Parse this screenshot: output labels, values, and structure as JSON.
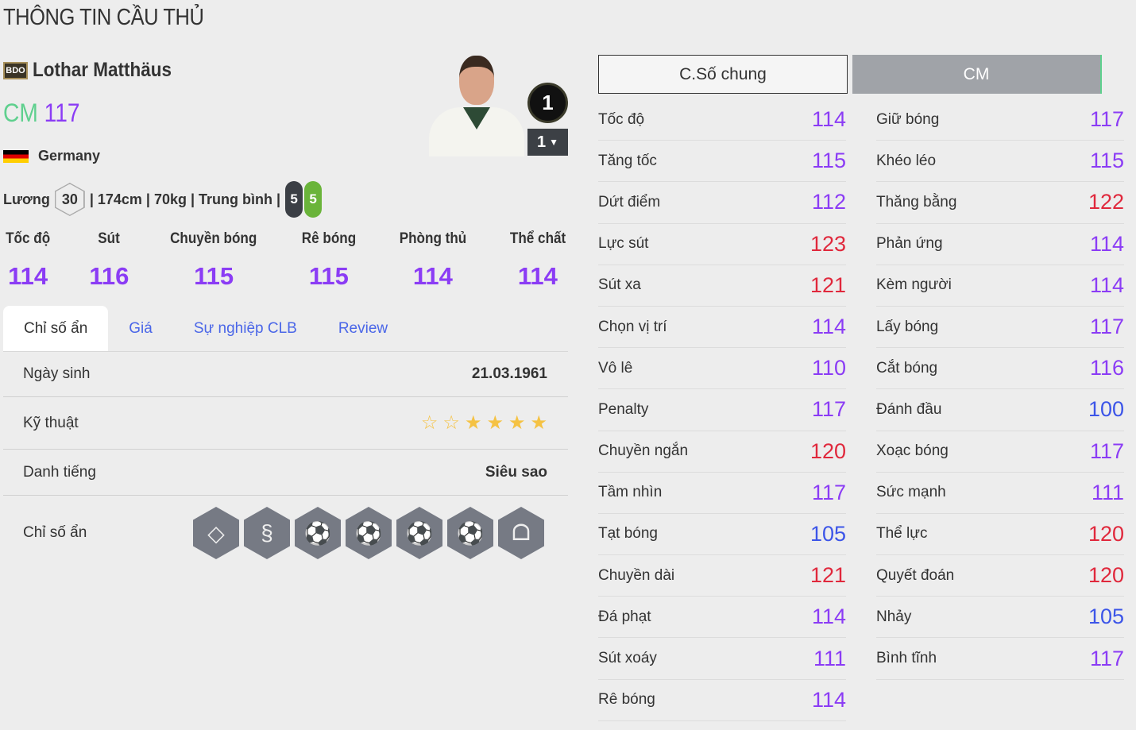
{
  "page_title": "THÔNG TIN CẦU THỦ",
  "player": {
    "season_badge": "BDO",
    "name": "Lothar Matthäus",
    "position": "CM",
    "ovr": "117",
    "nation": "Germany",
    "salary_label": "Lương",
    "salary": "30",
    "body": "| 174cm | 70kg | Trung bình |",
    "foot_left": "5",
    "foot_right": "5",
    "level": "1",
    "level_select": "1"
  },
  "groups": [
    {
      "label": "Tốc độ",
      "value": "114"
    },
    {
      "label": "Sút",
      "value": "116"
    },
    {
      "label": "Chuyền bóng",
      "value": "115"
    },
    {
      "label": "Rê bóng",
      "value": "115"
    },
    {
      "label": "Phòng thủ",
      "value": "114"
    },
    {
      "label": "Thể chất",
      "value": "114"
    }
  ],
  "tabs": [
    "Chỉ số ẩn",
    "Giá",
    "Sự nghiệp CLB",
    "Review"
  ],
  "details": {
    "birth_label": "Ngày sinh",
    "birth": "21.03.1961",
    "skill_label": "Kỹ thuật",
    "skill_stars": 4,
    "skill_max": 6,
    "rep_label": "Danh tiếng",
    "rep": "Siêu sao",
    "hidden_label": "Chỉ số ẩn"
  },
  "traits": [
    "diamond-icon",
    "snake-icon",
    "power-header-icon",
    "long-shot-icon",
    "flair-icon",
    "outside-foot-icon",
    "lungs-icon"
  ],
  "stat_tabs": [
    "C.Số chung",
    "CM"
  ],
  "colors": {
    "purple": "#8b3cf5",
    "red": "#e0283c",
    "blue": "#3c55e8"
  },
  "stats_left": [
    [
      "Tốc độ",
      "114"
    ],
    [
      "Tăng tốc",
      "115"
    ],
    [
      "Dứt điểm",
      "112"
    ],
    [
      "Lực sút",
      "123"
    ],
    [
      "Sút xa",
      "121"
    ],
    [
      "Chọn vị trí",
      "114"
    ],
    [
      "Vô lê",
      "110"
    ],
    [
      "Penalty",
      "117"
    ],
    [
      "Chuyền ngắn",
      "120"
    ],
    [
      "Tầm nhìn",
      "117"
    ],
    [
      "Tạt bóng",
      "105"
    ],
    [
      "Chuyền dài",
      "121"
    ],
    [
      "Đá phạt",
      "114"
    ],
    [
      "Sút xoáy",
      "111"
    ],
    [
      "Rê bóng",
      "114"
    ]
  ],
  "stats_right": [
    [
      "Giữ bóng",
      "117"
    ],
    [
      "Khéo léo",
      "115"
    ],
    [
      "Thăng bằng",
      "122"
    ],
    [
      "Phản ứng",
      "114"
    ],
    [
      "Kèm người",
      "114"
    ],
    [
      "Lấy bóng",
      "117"
    ],
    [
      "Cắt bóng",
      "116"
    ],
    [
      "Đánh đầu",
      "100"
    ],
    [
      "Xoạc bóng",
      "117"
    ],
    [
      "Sức mạnh",
      "111"
    ],
    [
      "Thể lực",
      "120"
    ],
    [
      "Quyết đoán",
      "120"
    ],
    [
      "Nhảy",
      "105"
    ],
    [
      "Bình tĩnh",
      "117"
    ]
  ]
}
